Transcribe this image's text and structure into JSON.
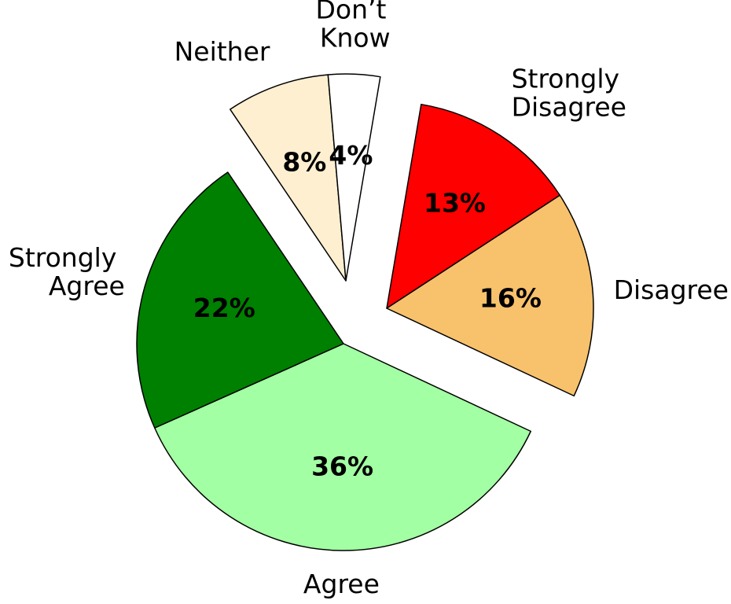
{
  "chart_data": {
    "type": "pie",
    "categories": [
      "Strongly Disagree",
      "Disagree",
      "Agree",
      "Strongly Agree",
      "Neither",
      "Don’t Know"
    ],
    "values": [
      13,
      16,
      36,
      22,
      8,
      4
    ],
    "value_labels": [
      "13%",
      "16%",
      "36%",
      "22%",
      "8%",
      "4%"
    ],
    "colors": [
      "#ff0000",
      "#f8c16c",
      "#a3ffa3",
      "#008000",
      "#fdefcf",
      "#ffffff"
    ]
  }
}
